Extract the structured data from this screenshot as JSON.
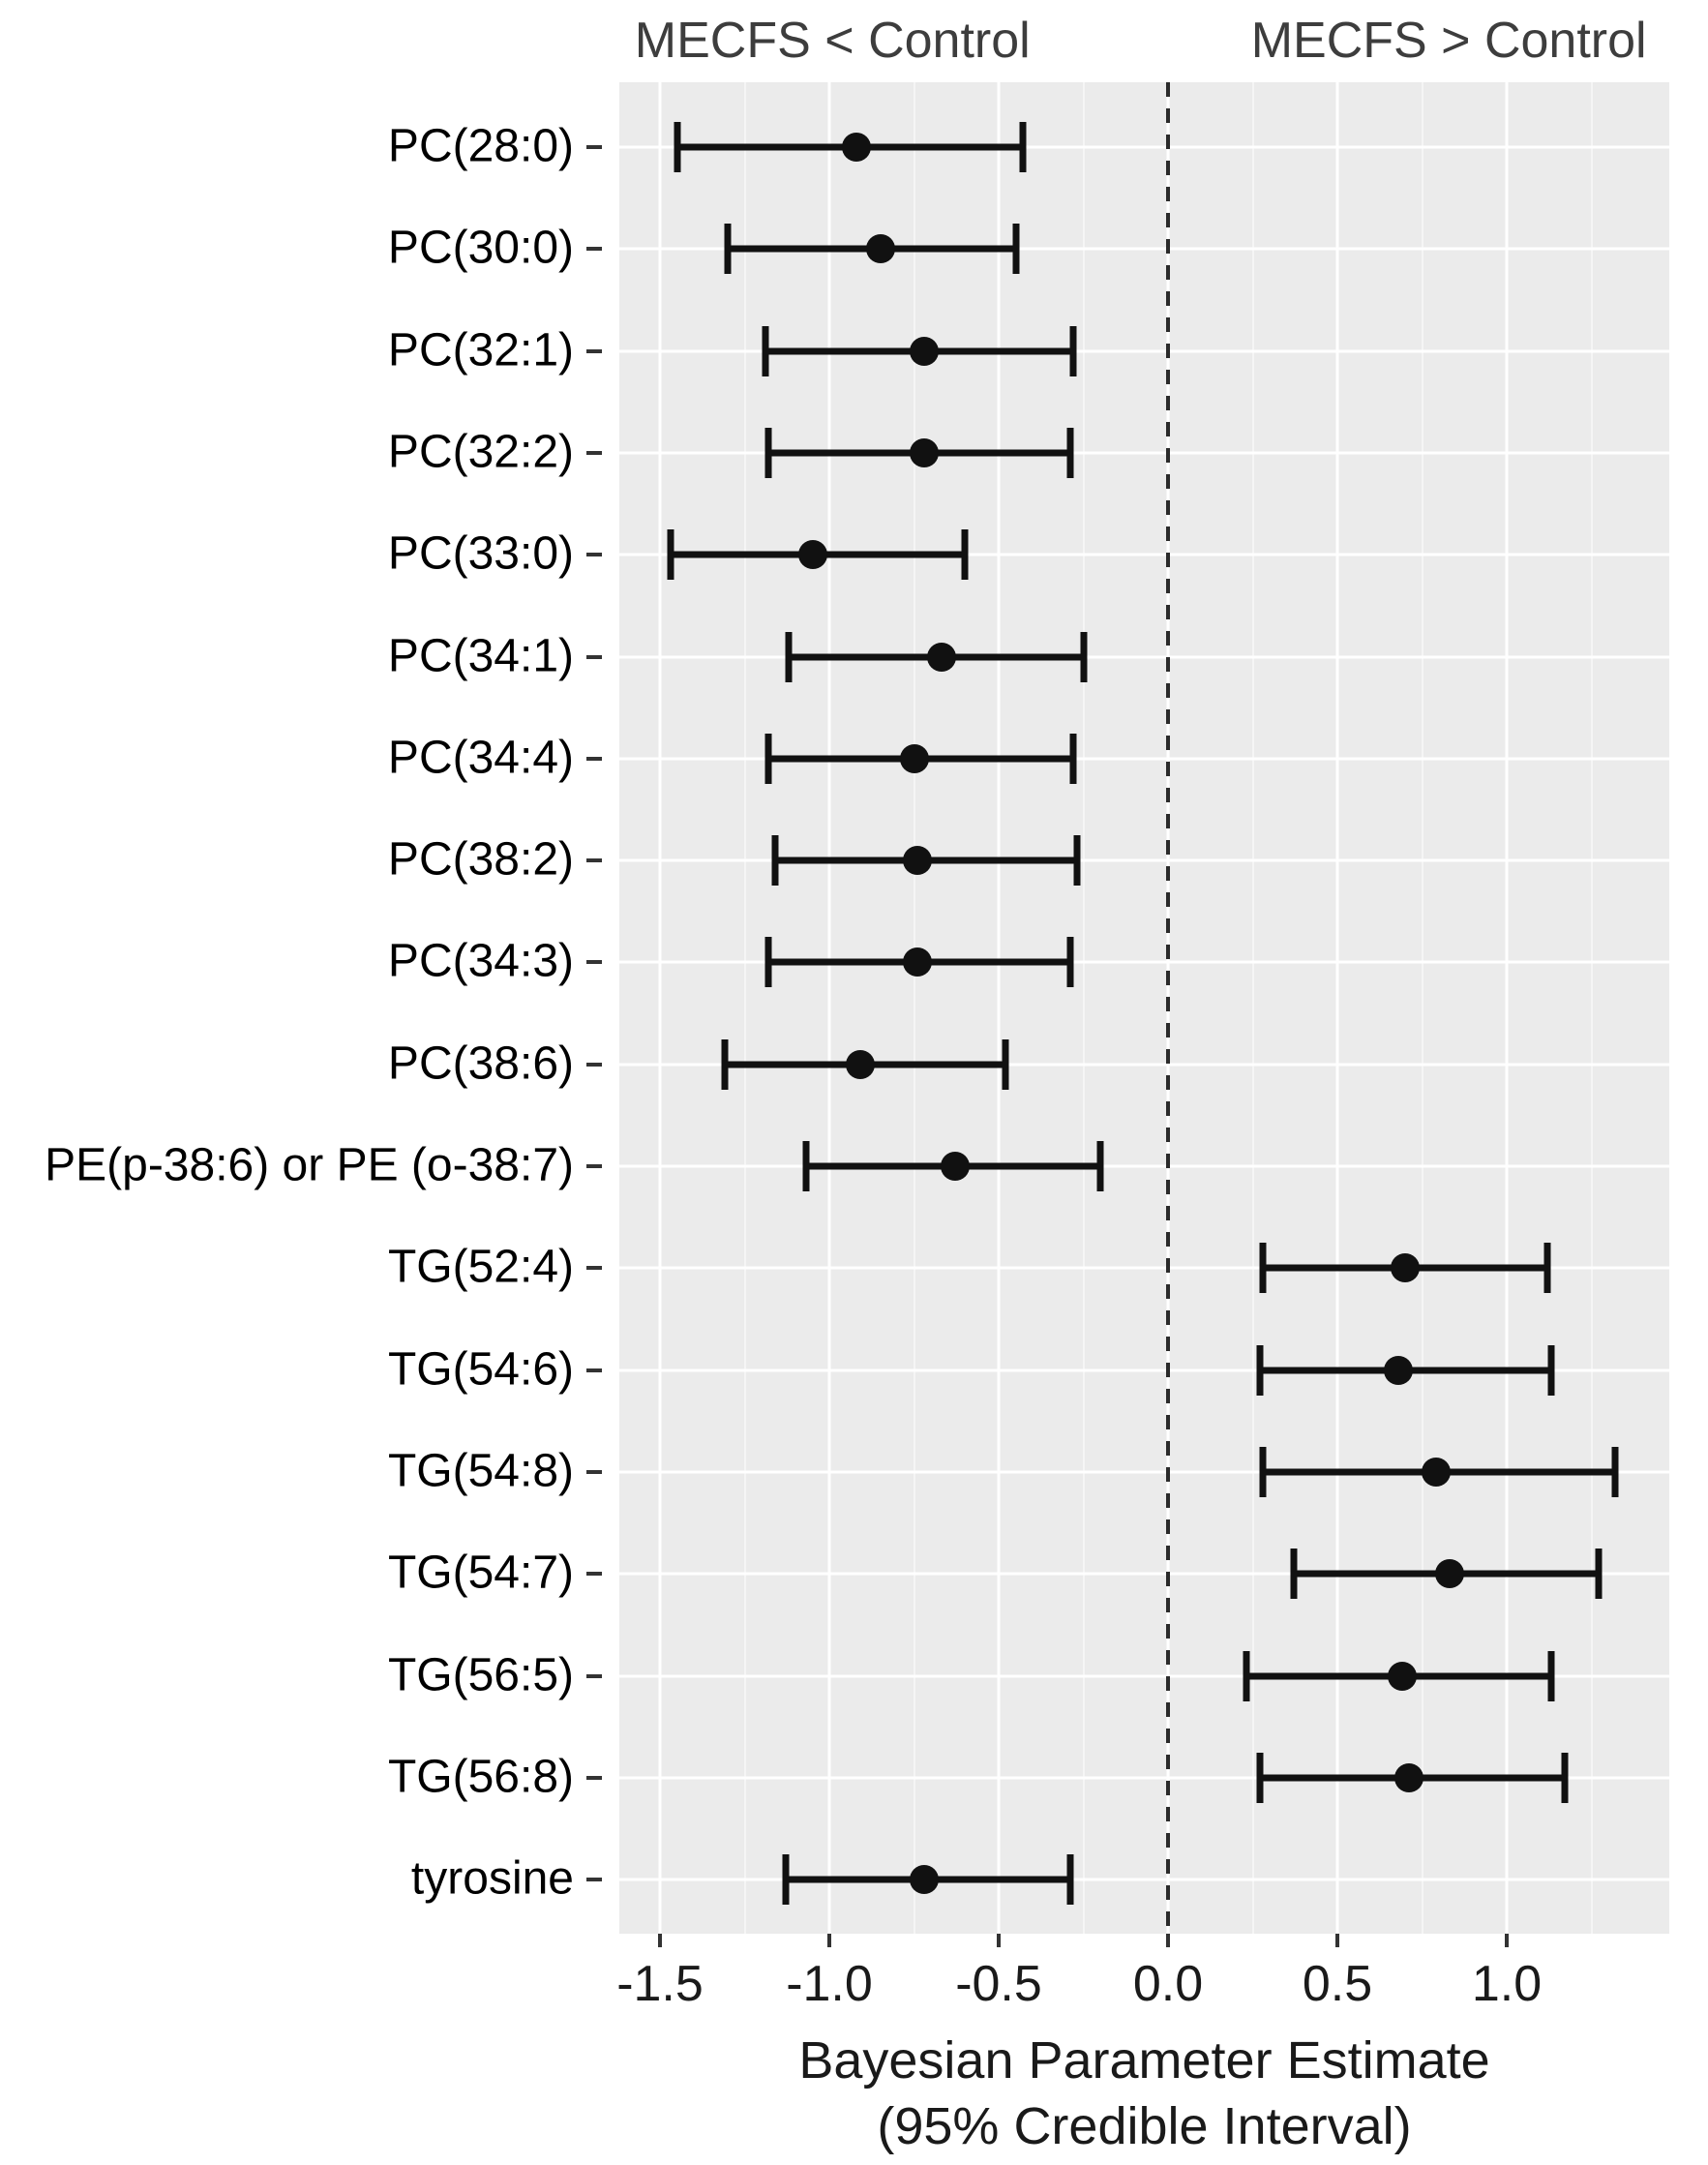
{
  "chart_data": {
    "type": "scatter",
    "subtype": "forest-plot-with-95CI-error-bars",
    "facet_left_header": "MECFS < Control",
    "facet_right_header": "MECFS > Control",
    "xlabel_line1": "Bayesian Parameter  Estimate",
    "xlabel_line2": "(95% Credible Interval)",
    "x_ticks": [
      -1.5,
      -1.0,
      -0.5,
      0.0,
      0.5,
      1.0
    ],
    "x_tick_labels": [
      "-1.5",
      "-1.0",
      "-0.5",
      "0.0",
      "0.5",
      "1.0"
    ],
    "x_minor_ticks": [
      -1.25,
      -0.75,
      -0.25,
      0.25,
      0.75,
      1.25
    ],
    "x_range": [
      -1.62,
      1.48
    ],
    "reference_line_x": 0.0,
    "grid": "major-white-minor-faint-on-gray-panel",
    "legend_position": "none",
    "rows": [
      {
        "label": "PC(28:0)",
        "estimate": -0.92,
        "lower": -1.45,
        "upper": -0.43
      },
      {
        "label": "PC(30:0)",
        "estimate": -0.85,
        "lower": -1.3,
        "upper": -0.45
      },
      {
        "label": "PC(32:1)",
        "estimate": -0.72,
        "lower": -1.19,
        "upper": -0.28
      },
      {
        "label": "PC(32:2)",
        "estimate": -0.72,
        "lower": -1.18,
        "upper": -0.29
      },
      {
        "label": "PC(33:0)",
        "estimate": -1.05,
        "lower": -1.47,
        "upper": -0.6
      },
      {
        "label": "PC(34:1)",
        "estimate": -0.67,
        "lower": -1.12,
        "upper": -0.25
      },
      {
        "label": "PC(34:4)",
        "estimate": -0.75,
        "lower": -1.18,
        "upper": -0.28
      },
      {
        "label": "PC(38:2)",
        "estimate": -0.74,
        "lower": -1.16,
        "upper": -0.27
      },
      {
        "label": "PC(34:3)",
        "estimate": -0.74,
        "lower": -1.18,
        "upper": -0.29
      },
      {
        "label": "PC(38:6)",
        "estimate": -0.91,
        "lower": -1.31,
        "upper": -0.48
      },
      {
        "label": "PE(p-38:6) or PE (o-38:7)",
        "estimate": -0.63,
        "lower": -1.07,
        "upper": -0.2
      },
      {
        "label": "TG(52:4)",
        "estimate": 0.7,
        "lower": 0.28,
        "upper": 1.12
      },
      {
        "label": "TG(54:6)",
        "estimate": 0.68,
        "lower": 0.27,
        "upper": 1.13
      },
      {
        "label": "TG(54:8)",
        "estimate": 0.79,
        "lower": 0.28,
        "upper": 1.32
      },
      {
        "label": "TG(54:7)",
        "estimate": 0.83,
        "lower": 0.37,
        "upper": 1.27
      },
      {
        "label": "TG(56:5)",
        "estimate": 0.69,
        "lower": 0.23,
        "upper": 1.13
      },
      {
        "label": "TG(56:8)",
        "estimate": 0.71,
        "lower": 0.27,
        "upper": 1.17
      },
      {
        "label": "tyrosine",
        "estimate": -0.72,
        "lower": -1.13,
        "upper": -0.29
      }
    ]
  },
  "colors": {
    "panel_background": "#ebebeb",
    "grid_major": "#ffffff",
    "grid_minor": "#f5f5f5",
    "marker": "#111111",
    "reference_line": "#2b2b2b",
    "facet_header_text": "#3d3d3d",
    "axis_text": "#1a1a1a"
  }
}
